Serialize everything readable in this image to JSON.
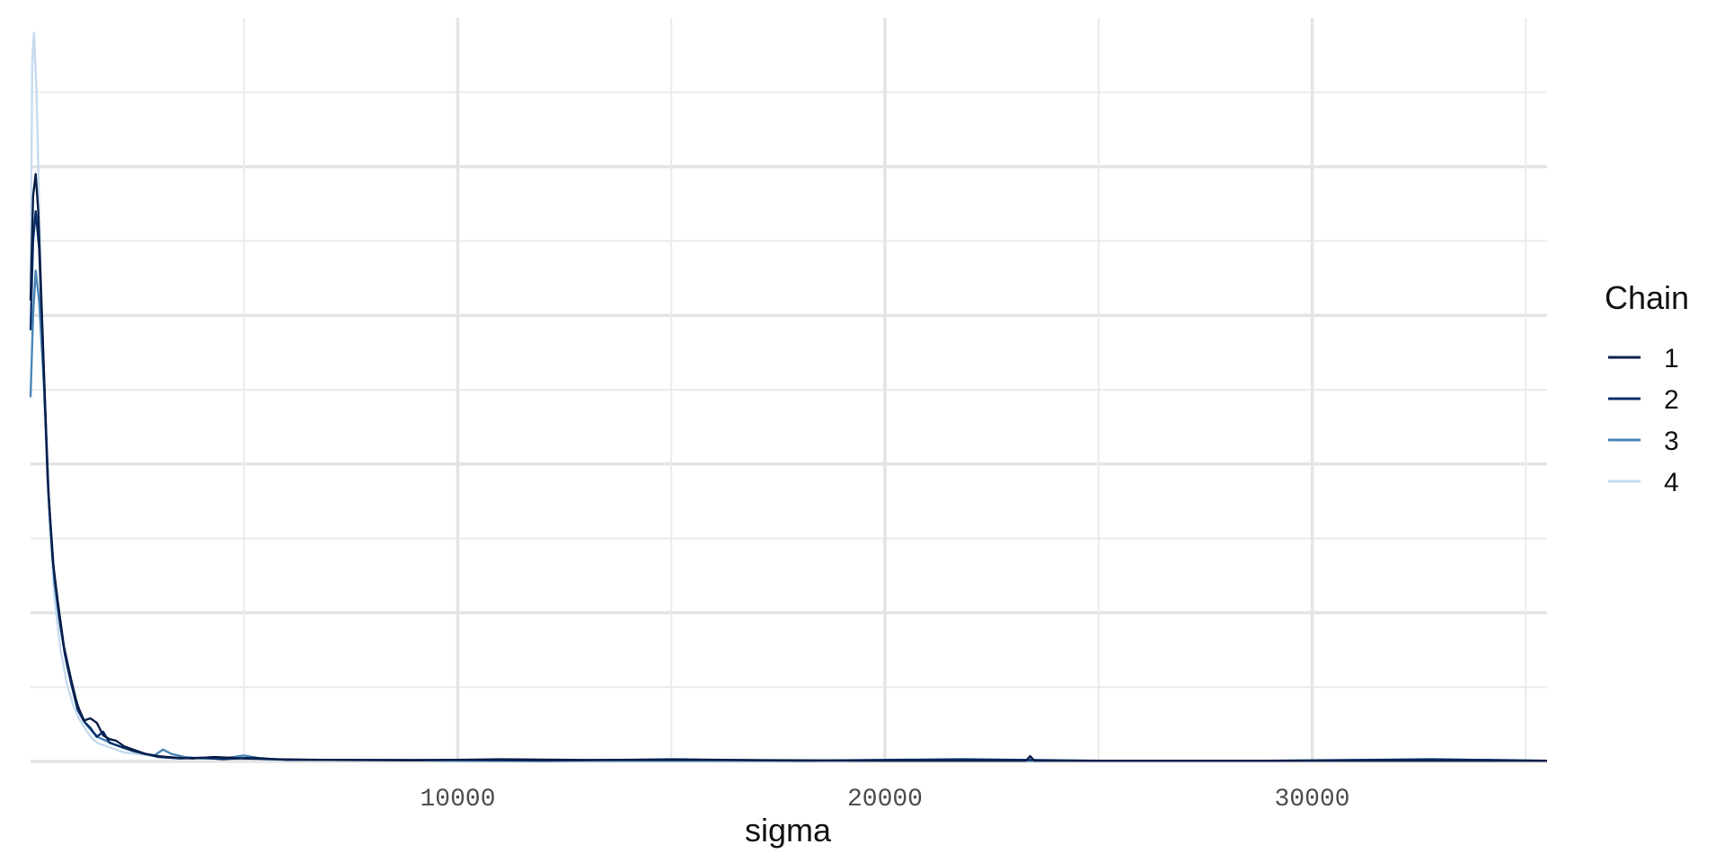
{
  "chart_data": {
    "type": "line",
    "title": "",
    "xlabel": "sigma",
    "ylabel": "",
    "xlim": [
      0,
      35500
    ],
    "ylim": [
      0,
      1
    ],
    "x_ticks": [
      10000,
      20000,
      30000
    ],
    "x_tick_labels": [
      "10000",
      "20000",
      "30000"
    ],
    "x_minor_grid": [
      5000,
      15000,
      25000,
      35000
    ],
    "y_tick_labels_shown": false,
    "grid": true,
    "legend": {
      "title": "Chain",
      "position": "right"
    },
    "series": [
      {
        "name": "1",
        "color": "#0b1f4a",
        "points": [
          [
            0,
            0.62
          ],
          [
            60,
            0.76
          ],
          [
            120,
            0.79
          ],
          [
            180,
            0.74
          ],
          [
            280,
            0.58
          ],
          [
            400,
            0.38
          ],
          [
            520,
            0.27
          ],
          [
            650,
            0.21
          ],
          [
            780,
            0.155
          ],
          [
            950,
            0.11
          ],
          [
            1100,
            0.075
          ],
          [
            1250,
            0.055
          ],
          [
            1400,
            0.058
          ],
          [
            1550,
            0.052
          ],
          [
            1700,
            0.035
          ],
          [
            1850,
            0.03
          ],
          [
            2000,
            0.028
          ],
          [
            2200,
            0.02
          ],
          [
            2400,
            0.016
          ],
          [
            2700,
            0.01
          ],
          [
            3000,
            0.007
          ],
          [
            3400,
            0.005
          ],
          [
            3800,
            0.004
          ],
          [
            4300,
            0.006
          ],
          [
            5000,
            0.004
          ],
          [
            5800,
            0.003
          ],
          [
            7000,
            0.002
          ],
          [
            9000,
            0.0015
          ],
          [
            11000,
            0.003
          ],
          [
            13000,
            0.002
          ],
          [
            16000,
            0.002
          ],
          [
            20000,
            0.001
          ],
          [
            23300,
            0.001
          ],
          [
            23400,
            0.007
          ],
          [
            23500,
            0.001
          ],
          [
            26000,
            0.001
          ],
          [
            30000,
            0.001
          ],
          [
            35500,
            0.001
          ]
        ]
      },
      {
        "name": "2",
        "color": "#08306b",
        "points": [
          [
            0,
            0.58
          ],
          [
            60,
            0.7
          ],
          [
            120,
            0.74
          ],
          [
            200,
            0.69
          ],
          [
            300,
            0.54
          ],
          [
            420,
            0.36
          ],
          [
            540,
            0.26
          ],
          [
            670,
            0.195
          ],
          [
            800,
            0.145
          ],
          [
            950,
            0.105
          ],
          [
            1100,
            0.07
          ],
          [
            1250,
            0.054
          ],
          [
            1400,
            0.045
          ],
          [
            1550,
            0.033
          ],
          [
            1700,
            0.04
          ],
          [
            1850,
            0.025
          ],
          [
            2000,
            0.022
          ],
          [
            2200,
            0.018
          ],
          [
            2400,
            0.014
          ],
          [
            2700,
            0.01
          ],
          [
            3000,
            0.006
          ],
          [
            3500,
            0.004
          ],
          [
            4000,
            0.005
          ],
          [
            4500,
            0.003
          ],
          [
            5200,
            0.005
          ],
          [
            6000,
            0.002
          ],
          [
            7500,
            0.002
          ],
          [
            10000,
            0.002
          ],
          [
            12000,
            0.001
          ],
          [
            15000,
            0.003
          ],
          [
            18000,
            0.001
          ],
          [
            21800,
            0.003
          ],
          [
            25000,
            0.001
          ],
          [
            29000,
            0.001
          ],
          [
            32800,
            0.003
          ],
          [
            35500,
            0.001
          ]
        ]
      },
      {
        "name": "3",
        "color": "#4a86b8",
        "points": [
          [
            0,
            0.49
          ],
          [
            60,
            0.6
          ],
          [
            120,
            0.66
          ],
          [
            200,
            0.62
          ],
          [
            320,
            0.5
          ],
          [
            440,
            0.34
          ],
          [
            560,
            0.24
          ],
          [
            700,
            0.18
          ],
          [
            850,
            0.13
          ],
          [
            1000,
            0.095
          ],
          [
            1150,
            0.068
          ],
          [
            1300,
            0.05
          ],
          [
            1450,
            0.04
          ],
          [
            1600,
            0.032
          ],
          [
            1800,
            0.027
          ],
          [
            2000,
            0.022
          ],
          [
            2200,
            0.018
          ],
          [
            2400,
            0.015
          ],
          [
            2650,
            0.01
          ],
          [
            2900,
            0.008
          ],
          [
            3100,
            0.016
          ],
          [
            3300,
            0.01
          ],
          [
            3600,
            0.006
          ],
          [
            4000,
            0.004
          ],
          [
            4500,
            0.004
          ],
          [
            5000,
            0.008
          ],
          [
            5500,
            0.003
          ],
          [
            6500,
            0.002
          ],
          [
            8000,
            0.002
          ],
          [
            10000,
            0.001
          ],
          [
            13000,
            0.001
          ],
          [
            17000,
            0.001
          ],
          [
            22000,
            0.001
          ],
          [
            28000,
            0.001
          ],
          [
            35500,
            0.001
          ]
        ]
      },
      {
        "name": "4",
        "color": "#c6dbef",
        "points": [
          [
            0,
            0.64
          ],
          [
            40,
            0.94
          ],
          [
            80,
            0.98
          ],
          [
            140,
            0.9
          ],
          [
            220,
            0.7
          ],
          [
            320,
            0.48
          ],
          [
            440,
            0.32
          ],
          [
            560,
            0.22
          ],
          [
            700,
            0.15
          ],
          [
            850,
            0.105
          ],
          [
            1000,
            0.075
          ],
          [
            1150,
            0.056
          ],
          [
            1300,
            0.042
          ],
          [
            1450,
            0.03
          ],
          [
            1600,
            0.024
          ],
          [
            1800,
            0.02
          ],
          [
            2000,
            0.016
          ],
          [
            2200,
            0.012
          ],
          [
            2500,
            0.01
          ],
          [
            2800,
            0.008
          ],
          [
            3200,
            0.006
          ],
          [
            3600,
            0.005
          ],
          [
            4200,
            0.004
          ],
          [
            5000,
            0.003
          ],
          [
            6000,
            0.002
          ],
          [
            7500,
            0.002
          ],
          [
            10000,
            0.001
          ],
          [
            14000,
            0.001
          ],
          [
            19000,
            0.001
          ],
          [
            25000,
            0.001
          ],
          [
            30000,
            0.001
          ],
          [
            35500,
            0.001
          ]
        ]
      }
    ]
  }
}
